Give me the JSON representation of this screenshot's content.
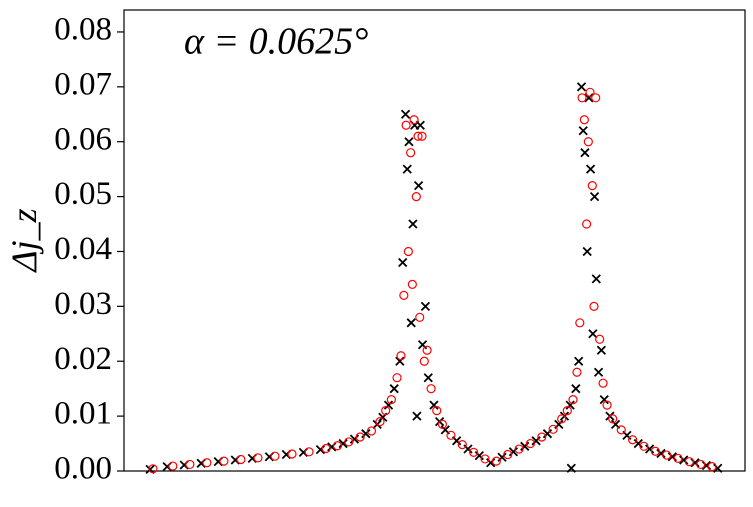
{
  "chart_data": {
    "type": "scatter",
    "annotation": "α = 0.0625°",
    "ylabel": "Δj_z",
    "xlim": [
      -4.6,
      104.8
    ],
    "ylim": [
      0,
      0.084
    ],
    "yticks": [
      {
        "value": 0,
        "label": "0.00"
      },
      {
        "value": 0.01,
        "label": "0.01"
      },
      {
        "value": 0.02,
        "label": "0.02"
      },
      {
        "value": 0.03,
        "label": "0.03"
      },
      {
        "value": 0.04,
        "label": "0.04"
      },
      {
        "value": 0.05,
        "label": "0.05"
      },
      {
        "value": 0.06,
        "label": "0.06"
      },
      {
        "value": 0.07,
        "label": "0.07"
      },
      {
        "value": 0.08,
        "label": "0.08"
      }
    ],
    "series": [
      {
        "color": "#000000",
        "marker": "x",
        "x": [
          0,
          3,
          6,
          9,
          12,
          15,
          18,
          21,
          24,
          27,
          30,
          32,
          34,
          36,
          38,
          40,
          41,
          42,
          43,
          44,
          44.5,
          45,
          45.3,
          45.6,
          46,
          46.3,
          46.6,
          47,
          47.3,
          47.6,
          48,
          48.5,
          49,
          50,
          51,
          52,
          54,
          56,
          58,
          60,
          62,
          64,
          66,
          68,
          70,
          72,
          73,
          74,
          74.2,
          75,
          75.5,
          76,
          76.3,
          76.6,
          77,
          77.3,
          77.6,
          78,
          78.3,
          78.6,
          79,
          79.5,
          80,
          81,
          82,
          84,
          86,
          88,
          90,
          92,
          94,
          96,
          98,
          100
        ],
        "values": [
          0.0003,
          0.0008,
          0.0011,
          0.0014,
          0.0017,
          0.002,
          0.0023,
          0.0026,
          0.003,
          0.0034,
          0.0039,
          0.0044,
          0.005,
          0.0058,
          0.0068,
          0.0085,
          0.0098,
          0.012,
          0.015,
          0.02,
          0.038,
          0.065,
          0.055,
          0.06,
          0.027,
          0.045,
          0.063,
          0.01,
          0.052,
          0.063,
          0.023,
          0.03,
          0.017,
          0.012,
          0.009,
          0.0075,
          0.0055,
          0.004,
          0.0028,
          0.0015,
          0.0025,
          0.0035,
          0.0045,
          0.0055,
          0.0068,
          0.0085,
          0.01,
          0.012,
          0.0005,
          0.015,
          0.02,
          0.07,
          0.062,
          0.058,
          0.04,
          0.068,
          0.055,
          0.025,
          0.05,
          0.035,
          0.018,
          0.022,
          0.013,
          0.01,
          0.0085,
          0.0065,
          0.005,
          0.004,
          0.0032,
          0.0026,
          0.002,
          0.0015,
          0.001,
          0.0005
        ]
      },
      {
        "color": "#ff0000",
        "marker": "o",
        "x": [
          0.5,
          4,
          7,
          10,
          13,
          16,
          19,
          22,
          25,
          28,
          31,
          33,
          35,
          37,
          39,
          40.5,
          41.5,
          42.5,
          43.5,
          44.2,
          44.7,
          45.1,
          45.5,
          45.9,
          46.2,
          46.5,
          46.9,
          47.2,
          47.5,
          47.9,
          48.3,
          48.8,
          49.5,
          50.5,
          51.5,
          53,
          55,
          57,
          59,
          61,
          63,
          65,
          67,
          69,
          71,
          72.5,
          73.5,
          74.5,
          75.2,
          75.7,
          76.1,
          76.5,
          76.9,
          77.2,
          77.5,
          77.9,
          78.2,
          78.5,
          79.2,
          79.8,
          80.5,
          81.5,
          83,
          85,
          87,
          89,
          91,
          93,
          95,
          97,
          99
        ],
        "values": [
          0.0004,
          0.0009,
          0.0012,
          0.0015,
          0.0018,
          0.0021,
          0.0024,
          0.0027,
          0.0031,
          0.0035,
          0.0041,
          0.0046,
          0.0053,
          0.0062,
          0.0073,
          0.009,
          0.011,
          0.013,
          0.017,
          0.021,
          0.032,
          0.063,
          0.04,
          0.058,
          0.034,
          0.064,
          0.05,
          0.061,
          0.028,
          0.061,
          0.02,
          0.022,
          0.015,
          0.011,
          0.0085,
          0.0065,
          0.0048,
          0.0034,
          0.0022,
          0.0018,
          0.003,
          0.004,
          0.005,
          0.0062,
          0.0076,
          0.0095,
          0.011,
          0.013,
          0.018,
          0.027,
          0.068,
          0.064,
          0.045,
          0.06,
          0.069,
          0.052,
          0.03,
          0.068,
          0.024,
          0.016,
          0.012,
          0.0095,
          0.0075,
          0.0057,
          0.0045,
          0.0036,
          0.0029,
          0.0023,
          0.0017,
          0.0012,
          0.0008
        ]
      }
    ]
  }
}
